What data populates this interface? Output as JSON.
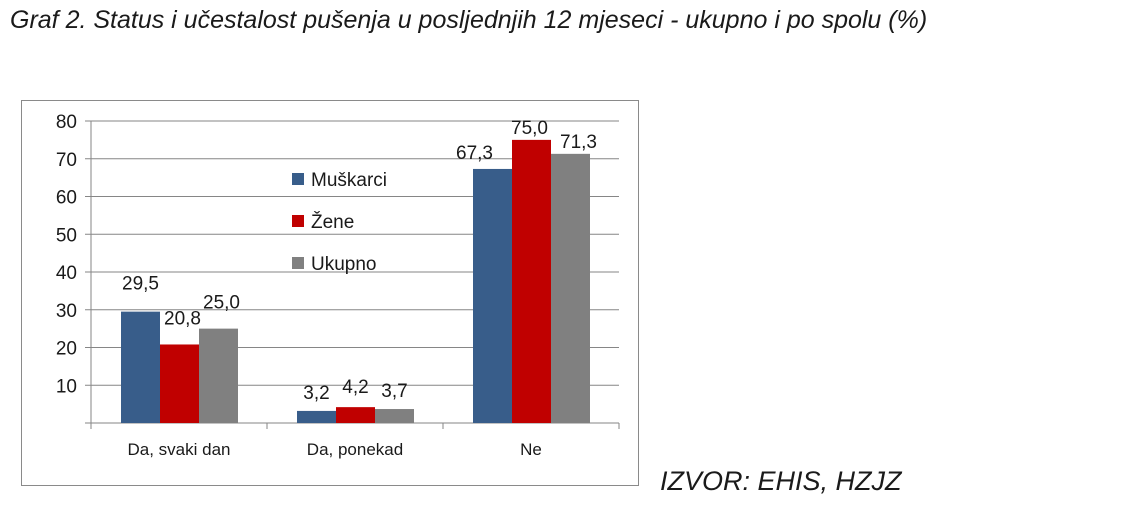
{
  "title": "Graf 2. Status i učestalost pušenja u posljednjih 12 mjeseci - ukupno i po spolu (%)",
  "source": "IZVOR: EHIS, HZJZ",
  "chart_data": {
    "type": "bar",
    "categories": [
      "Da, svaki dan",
      "Da, ponekad",
      "Ne"
    ],
    "series": [
      {
        "name": "Muškarci",
        "values": [
          29.5,
          3.2,
          67.3
        ],
        "labels": [
          "29,5",
          "3,2",
          "67,3"
        ],
        "color": "#385d8a"
      },
      {
        "name": "Žene",
        "values": [
          20.8,
          4.2,
          75.0
        ],
        "labels": [
          "20,8",
          "4,2",
          "75,0"
        ],
        "color": "#c00000"
      },
      {
        "name": "Ukupno",
        "values": [
          25.0,
          3.7,
          71.3
        ],
        "labels": [
          "25,0",
          "3,7",
          "71,3"
        ],
        "color": "#808080"
      }
    ],
    "ylim": [
      0,
      80
    ],
    "yticks": [
      10,
      20,
      30,
      40,
      50,
      60,
      70,
      80
    ],
    "grid": true,
    "legend": "upper-center"
  }
}
